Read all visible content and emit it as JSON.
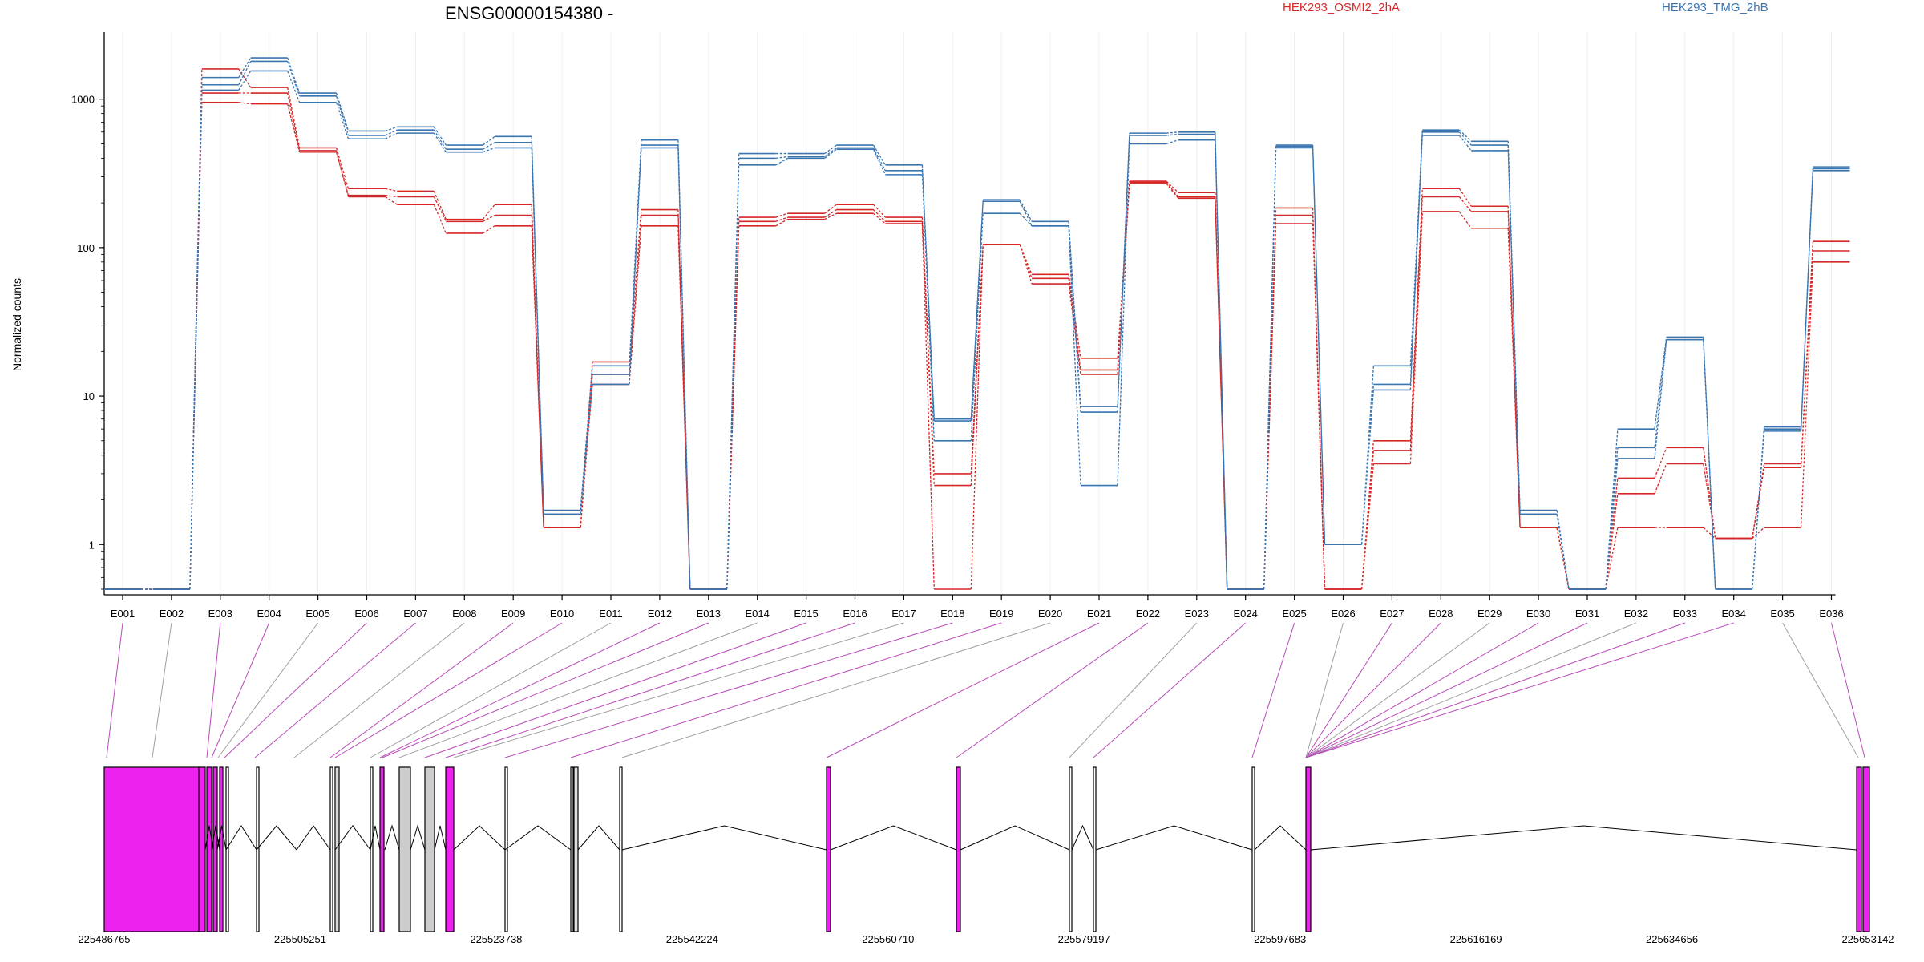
{
  "chart_data": {
    "type": "line",
    "title": "ENSG00000154380 -",
    "ylabel": "Normalized counts",
    "xlabel": "",
    "y_scale": "log",
    "ylim": [
      0.5,
      2500
    ],
    "y_ticks": [
      1,
      10,
      100,
      1000
    ],
    "y_tick_labels": [
      "1",
      "10",
      "100",
      "1000"
    ],
    "grid": "vertical-light",
    "legend_placement": "top-right",
    "categories": [
      "E001",
      "E002",
      "E003",
      "E004",
      "E005",
      "E006",
      "E007",
      "E008",
      "E009",
      "E010",
      "E011",
      "E012",
      "E013",
      "E014",
      "E015",
      "E016",
      "E017",
      "E018",
      "E019",
      "E020",
      "E021",
      "E022",
      "E023",
      "E024",
      "E025",
      "E026",
      "E027",
      "E028",
      "E029",
      "E030",
      "E031",
      "E032",
      "E033",
      "E034",
      "E035",
      "E036"
    ],
    "series": [
      {
        "name": "HEK293_OSMI2_2hA",
        "color": "#d62728",
        "values": [
          0.5,
          0.5,
          1600,
          1200,
          470,
          250,
          240,
          155,
          195,
          1.3,
          17,
          180,
          0.5,
          160,
          170,
          195,
          160,
          3.0,
          105,
          66,
          18,
          280,
          235,
          0.5,
          185,
          0.5,
          5.0,
          250,
          190,
          1.3,
          0.5,
          2.8,
          4.5,
          1.1,
          3.5,
          110
        ]
      },
      {
        "name": "",
        "color": "#d62728",
        "values": [
          0.5,
          0.5,
          1100,
          1100,
          450,
          225,
          220,
          150,
          165,
          1.3,
          14,
          165,
          0.5,
          150,
          160,
          180,
          150,
          2.5,
          105,
          62,
          15,
          275,
          220,
          0.5,
          165,
          0.5,
          4.3,
          220,
          175,
          1.3,
          0.5,
          2.2,
          3.5,
          1.1,
          3.3,
          95
        ]
      },
      {
        "name": "",
        "color": "#d62728",
        "values": [
          0.5,
          0.5,
          950,
          930,
          440,
          220,
          195,
          125,
          140,
          1.3,
          12,
          140,
          0.5,
          140,
          155,
          170,
          145,
          0.5,
          105,
          57,
          14,
          270,
          215,
          0.5,
          145,
          0.5,
          3.5,
          175,
          135,
          1.3,
          0.5,
          1.3,
          1.3,
          1.1,
          1.3,
          80
        ]
      },
      {
        "name": "HEK293_TMG_2hB",
        "color": "#3a75b0",
        "values": [
          0.5,
          0.5,
          1400,
          1900,
          1100,
          610,
          650,
          490,
          560,
          1.7,
          16,
          530,
          0.5,
          430,
          430,
          490,
          360,
          7.0,
          210,
          150,
          8.5,
          590,
          600,
          0.5,
          490,
          1.0,
          16,
          620,
          520,
          1.7,
          0.5,
          6.0,
          25,
          0.5,
          6.2,
          350
        ]
      },
      {
        "name": "",
        "color": "#3a75b0",
        "values": [
          0.5,
          0.5,
          1250,
          1800,
          1050,
          570,
          620,
          460,
          510,
          1.6,
          14,
          490,
          0.5,
          400,
          410,
          470,
          330,
          6.8,
          205,
          140,
          7.8,
          570,
          580,
          0.5,
          480,
          1.0,
          12,
          600,
          490,
          1.6,
          0.5,
          4.5,
          24,
          0.5,
          6.0,
          340
        ]
      },
      {
        "name": "",
        "color": "#3a75b0",
        "values": [
          0.5,
          0.5,
          1150,
          1550,
          950,
          540,
          590,
          440,
          470,
          1.6,
          12,
          470,
          0.5,
          360,
          400,
          460,
          310,
          5.0,
          170,
          140,
          2.5,
          500,
          530,
          0.5,
          470,
          1.0,
          11,
          570,
          450,
          1.6,
          0.5,
          3.8,
          24,
          0.5,
          5.8,
          330
        ]
      }
    ],
    "genomic_ticks": [
      "225486765",
      "225505251",
      "225523738",
      "225542224",
      "225560710",
      "225579197",
      "225597683",
      "225616169",
      "225634656",
      "225653142"
    ],
    "exon_color": "#ee22ee"
  }
}
